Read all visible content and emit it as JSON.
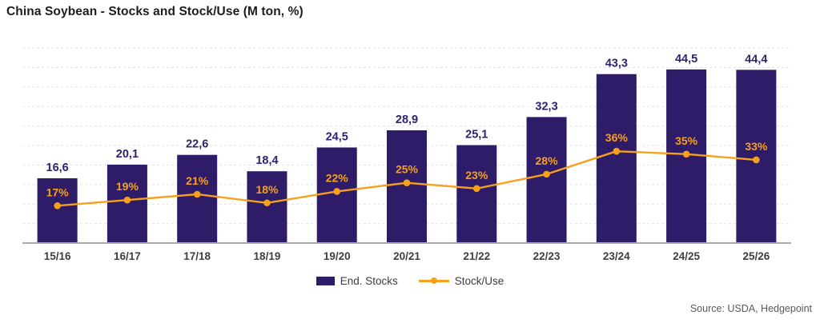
{
  "title": "China Soybean - Stocks and Stock/Use (M ton, %)",
  "source": "Source: USDA, Hedgepoint",
  "legend": {
    "end_stocks": "End. Stocks",
    "stock_use": "Stock/Use"
  },
  "colors": {
    "bar": "#2e1c69",
    "bar_label": "#30216f",
    "line": "#f6a01b",
    "gridline": "#e4e4e4",
    "axis_line": "#a9a9a9",
    "x_label": "#3f3f3f",
    "title_text": "#1d1d1d",
    "source_text": "#595959"
  },
  "chart_data": {
    "type": "bar",
    "subtype": "bar-line-combo",
    "title": "China Soybean - Stocks and Stock/Use (M ton, %)",
    "xlabel": "",
    "ylabel": "",
    "categories": [
      "15/16",
      "16/17",
      "17/18",
      "18/19",
      "19/20",
      "20/21",
      "21/22",
      "22/23",
      "23/24",
      "24/25",
      "25/26"
    ],
    "series": [
      {
        "name": "End. Stocks",
        "type": "bar",
        "unit": "M ton",
        "color": "#2e1c69",
        "values": [
          16.6,
          20.1,
          22.6,
          18.4,
          24.5,
          28.9,
          25.1,
          32.3,
          43.3,
          44.5,
          44.4
        ],
        "value_labels": [
          "16,6",
          "20,1",
          "22,6",
          "18,4",
          "24,5",
          "28,9",
          "25,1",
          "32,3",
          "43,3",
          "44,5",
          "44,4"
        ]
      },
      {
        "name": "Stock/Use",
        "type": "line",
        "unit": "%",
        "color": "#f6a01b",
        "values": [
          17,
          19,
          21,
          18,
          22,
          25,
          23,
          28,
          36,
          35,
          33
        ],
        "value_labels": [
          "17%",
          "19%",
          "21%",
          "18%",
          "22%",
          "25%",
          "23%",
          "28%",
          "36%",
          "35%",
          "33%"
        ]
      }
    ],
    "left_axis": {
      "min": 0,
      "max": 50,
      "gridline_step": 5,
      "tick_labels_visible": false
    },
    "right_axis": {
      "tick_labels_visible": false
    },
    "grid": "horizontal-dashed",
    "legend_position": "bottom-center",
    "value_labels_visible": true
  }
}
